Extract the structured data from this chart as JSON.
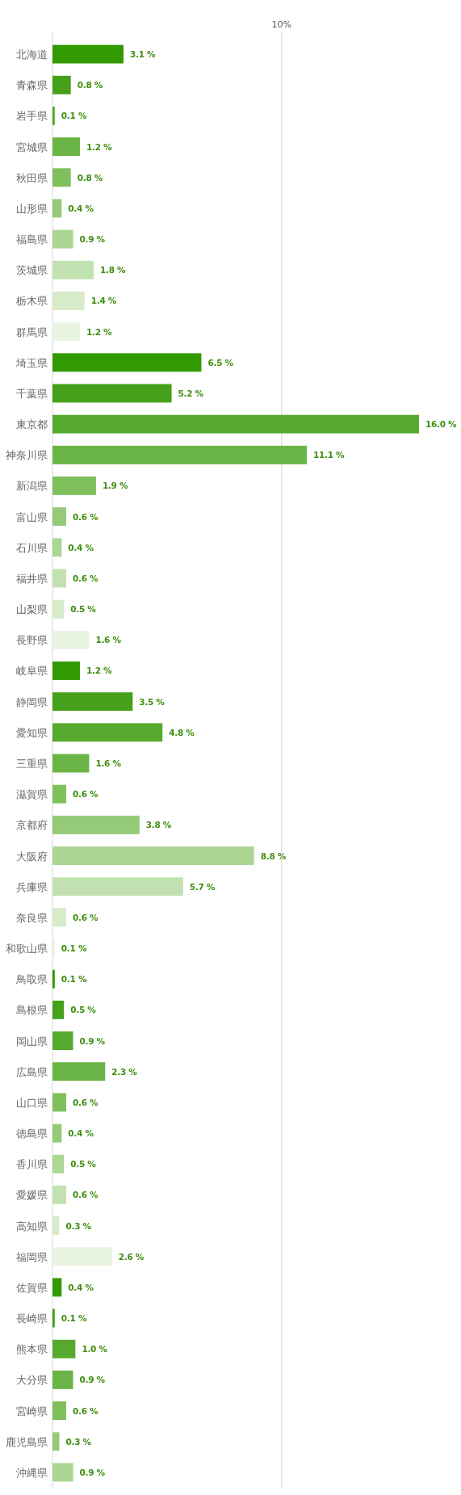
{
  "chart_data": {
    "type": "bar",
    "orientation": "horizontal",
    "categories": [
      "北海道",
      "青森県",
      "岩手県",
      "宮城県",
      "秋田県",
      "山形県",
      "福島県",
      "茨城県",
      "栃木県",
      "群馬県",
      "埼玉県",
      "千葉県",
      "東京都",
      "神奈川県",
      "新潟県",
      "富山県",
      "石川県",
      "福井県",
      "山梨県",
      "長野県",
      "岐阜県",
      "静岡県",
      "愛知県",
      "三重県",
      "滋賀県",
      "京都府",
      "大阪府",
      "兵庫県",
      "奈良県",
      "和歌山県",
      "鳥取県",
      "島根県",
      "岡山県",
      "広島県",
      "山口県",
      "徳島県",
      "香川県",
      "愛媛県",
      "高知県",
      "福岡県",
      "佐賀県",
      "長崎県",
      "熊本県",
      "大分県",
      "宮崎県",
      "鹿児島県",
      "沖縄県"
    ],
    "values": [
      3.1,
      0.8,
      0.1,
      1.2,
      0.8,
      0.4,
      0.9,
      1.8,
      1.4,
      1.2,
      6.5,
      5.2,
      16.0,
      11.1,
      1.9,
      0.6,
      0.4,
      0.6,
      0.5,
      1.6,
      1.2,
      3.5,
      4.8,
      1.6,
      0.6,
      3.8,
      8.8,
      5.7,
      0.6,
      0.1,
      0.1,
      0.5,
      0.9,
      2.3,
      0.6,
      0.4,
      0.5,
      0.6,
      0.3,
      2.6,
      0.4,
      0.1,
      1.0,
      0.9,
      0.6,
      0.3,
      0.9
    ],
    "value_labels": [
      "3.1 %",
      "0.8 %",
      "0.1 %",
      "1.2 %",
      "0.8 %",
      "0.4 %",
      "0.9 %",
      "1.8 %",
      "1.4 %",
      "1.2 %",
      "6.5 %",
      "5.2 %",
      "16.0 %",
      "11.1 %",
      "1.9 %",
      "0.6 %",
      "0.4 %",
      "0.6 %",
      "0.5 %",
      "1.6 %",
      "1.2 %",
      "3.5 %",
      "4.8 %",
      "1.6 %",
      "0.6 %",
      "3.8 %",
      "8.8 %",
      "5.7 %",
      "0.6 %",
      "0.1 %",
      "0.1 %",
      "0.5 %",
      "0.9 %",
      "2.3 %",
      "0.6 %",
      "0.4 %",
      "0.5 %",
      "0.6 %",
      "0.3 %",
      "2.6 %",
      "0.4 %",
      "0.1 %",
      "1.0 %",
      "0.9 %",
      "0.6 %",
      "0.3 %",
      "0.9 %"
    ],
    "colors": [
      "#339900",
      "#46a11a",
      "#57a92e",
      "#6ab545",
      "#7fc05c",
      "#95ca78",
      "#abd694",
      "#c2e1b0",
      "#d7ebcb",
      "#eaf4e3",
      "#339900",
      "#46a11a",
      "#57a92e",
      "#6ab545",
      "#7fc05c",
      "#95ca78",
      "#abd694",
      "#c2e1b0",
      "#d7ebcb",
      "#eaf4e3",
      "#339900",
      "#46a11a",
      "#57a92e",
      "#6ab545",
      "#7fc05c",
      "#95ca78",
      "#abd694",
      "#c2e1b0",
      "#d7ebcb",
      "#eaf4e3",
      "#339900",
      "#46a11a",
      "#57a92e",
      "#6ab545",
      "#7fc05c",
      "#95ca78",
      "#abd694",
      "#c2e1b0",
      "#d7ebcb",
      "#eaf4e3",
      "#339900",
      "#46a11a",
      "#57a92e",
      "#6ab545",
      "#7fc05c",
      "#95ca78",
      "#abd694"
    ],
    "ref_lines": [
      {
        "axis": "x",
        "value": 10,
        "label": "10%",
        "color": "#d8d8d8"
      }
    ]
  }
}
